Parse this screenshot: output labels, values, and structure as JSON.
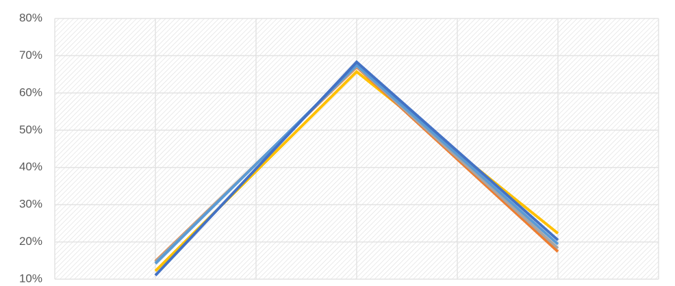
{
  "chart_data": {
    "type": "line",
    "categories": [
      null,
      null,
      null
    ],
    "series": [
      {
        "color": "#ffc000",
        "values": [
          12.2,
          65.7,
          22.3
        ]
      },
      {
        "color": "#ed7d31",
        "values": [
          14.8,
          67,
          17.4
        ]
      },
      {
        "color": "#a5a5a5",
        "values": [
          14.6,
          67.2,
          18.3
        ]
      },
      {
        "color": "#5b9bd5",
        "values": [
          14.2,
          67.5,
          19.4
        ]
      },
      {
        "color": "#4472c4",
        "values": [
          11,
          68.3,
          20.5
        ]
      }
    ],
    "ylim": [
      10,
      80
    ],
    "yticks": [
      {
        "value": 10,
        "label": "10%"
      },
      {
        "value": 20,
        "label": "20%"
      },
      {
        "value": 30,
        "label": "30%"
      },
      {
        "value": 40,
        "label": "40%"
      },
      {
        "value": 50,
        "label": "50%"
      },
      {
        "value": 60,
        "label": "60%"
      },
      {
        "value": 70,
        "label": "70%"
      },
      {
        "value": 80,
        "label": "80%"
      }
    ],
    "grid": true
  }
}
